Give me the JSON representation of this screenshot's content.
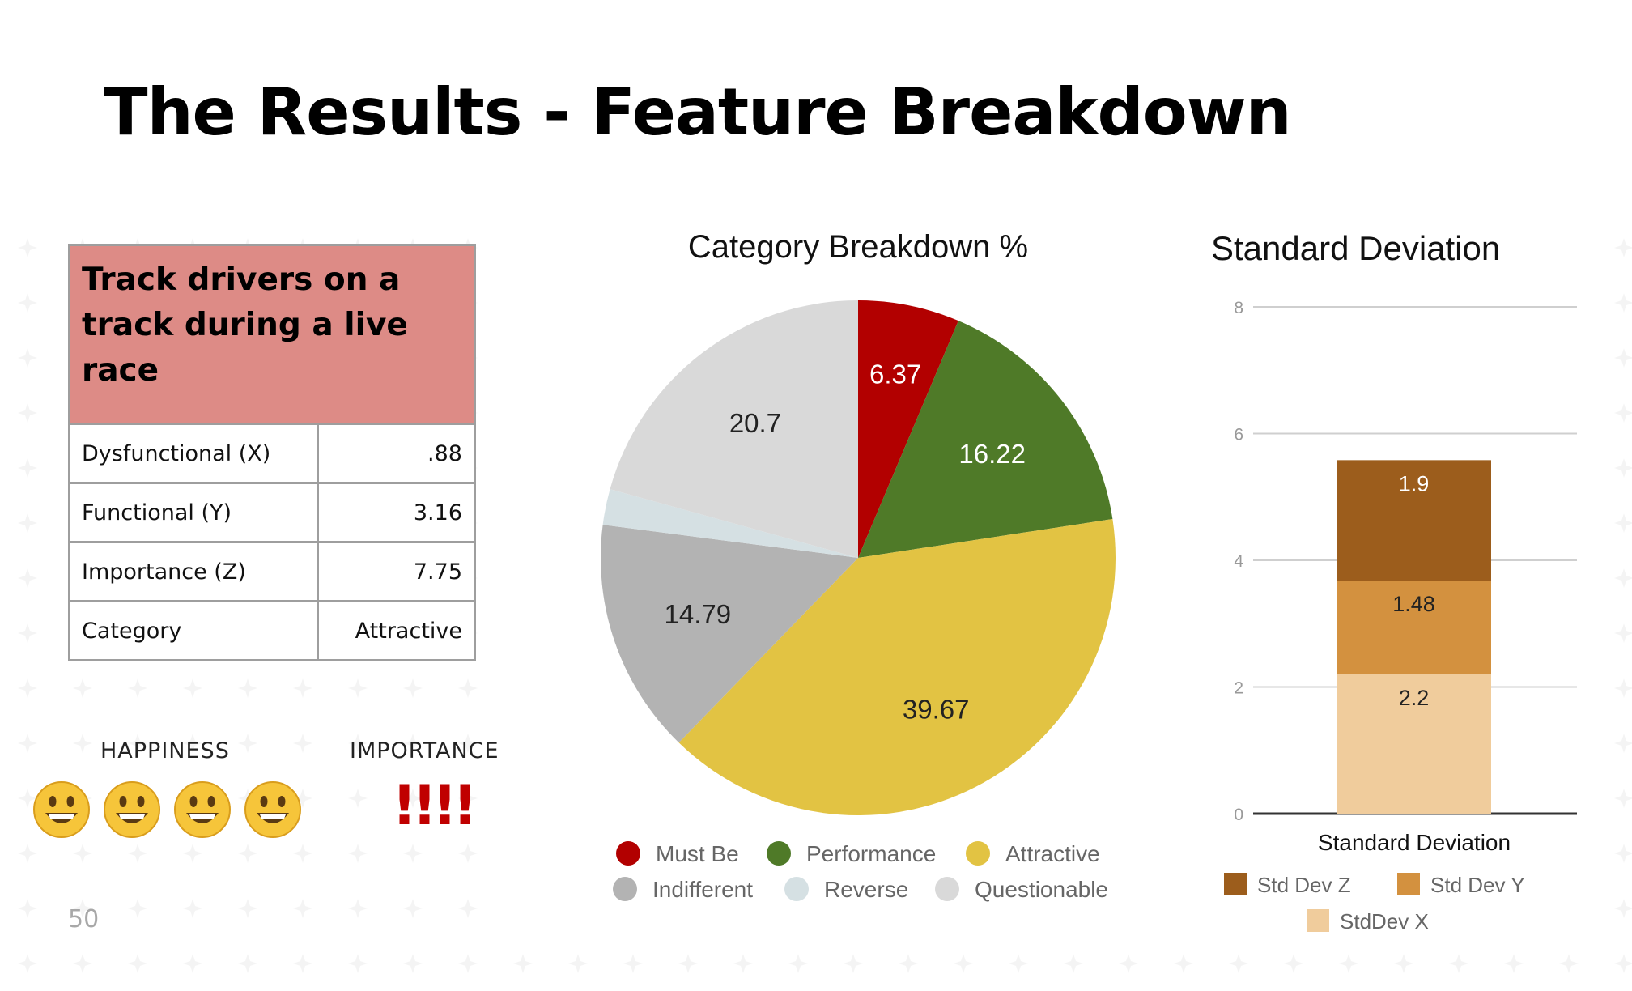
{
  "slide": {
    "title": "The Results - Feature Breakdown",
    "page_number": "50"
  },
  "feature": {
    "name": "Track drivers on a track during a live race",
    "name_lines": [
      "Track drivers on a",
      "track during a live",
      "race"
    ],
    "rows": [
      {
        "label": "Dysfunctional (X)",
        "value": ".88"
      },
      {
        "label": "Functional (Y)",
        "value": "3.16"
      },
      {
        "label": "Importance (Z)",
        "value": "7.75"
      },
      {
        "label": "Category",
        "value": "Attractive"
      }
    ]
  },
  "ratings": {
    "happiness_label": "HAPPINESS",
    "happiness_count": 4,
    "happiness_icon": "smiley-face-icon",
    "importance_label": "IMPORTANCE",
    "importance_text": "!!!!",
    "importance_color": "#c00000"
  },
  "chart_data": [
    {
      "type": "pie",
      "title": "Category Breakdown %",
      "slices": [
        {
          "name": "Must Be",
          "value": 6.37,
          "label": "6.37",
          "color": "#b20000"
        },
        {
          "name": "Performance",
          "value": 16.22,
          "label": "16.22",
          "color": "#4f7a28"
        },
        {
          "name": "Attractive",
          "value": 39.67,
          "label": "39.67",
          "color": "#e2c343"
        },
        {
          "name": "Indifferent",
          "value": 14.79,
          "label": "14.79",
          "color": "#b3b3b3"
        },
        {
          "name": "Reverse",
          "value": 2.25,
          "label": "",
          "color": "#d5e0e3"
        },
        {
          "name": "Questionable",
          "value": 20.7,
          "label": "20.7",
          "color": "#d9d9d9"
        }
      ],
      "label_colors": {
        "Must Be": "#ffffff",
        "Performance": "#ffffff",
        "Attractive": "#222222",
        "Indifferent": "#222222",
        "Questionable": "#222222"
      },
      "legend_position": "bottom"
    },
    {
      "type": "bar",
      "stacked": true,
      "title": "Standard Deviation",
      "categories": [
        "Standard Deviation"
      ],
      "xlabel": "Standard Deviation",
      "ylim": [
        0,
        8
      ],
      "yticks": [
        0,
        2,
        4,
        6,
        8
      ],
      "grid": true,
      "series": [
        {
          "name": "StdDev X",
          "values": [
            2.2
          ],
          "label": "2.2",
          "color": "#f0cc9c"
        },
        {
          "name": "Std Dev Y",
          "values": [
            1.48
          ],
          "label": "1.48",
          "color": "#d3913f"
        },
        {
          "name": "Std Dev Z",
          "values": [
            1.9
          ],
          "label": "1.9",
          "color": "#9c5d1c"
        }
      ],
      "label_colors": {
        "StdDev X": "#222222",
        "Std Dev Y": "#222222",
        "Std Dev Z": "#ffffff"
      },
      "legend_position": "bottom"
    }
  ]
}
